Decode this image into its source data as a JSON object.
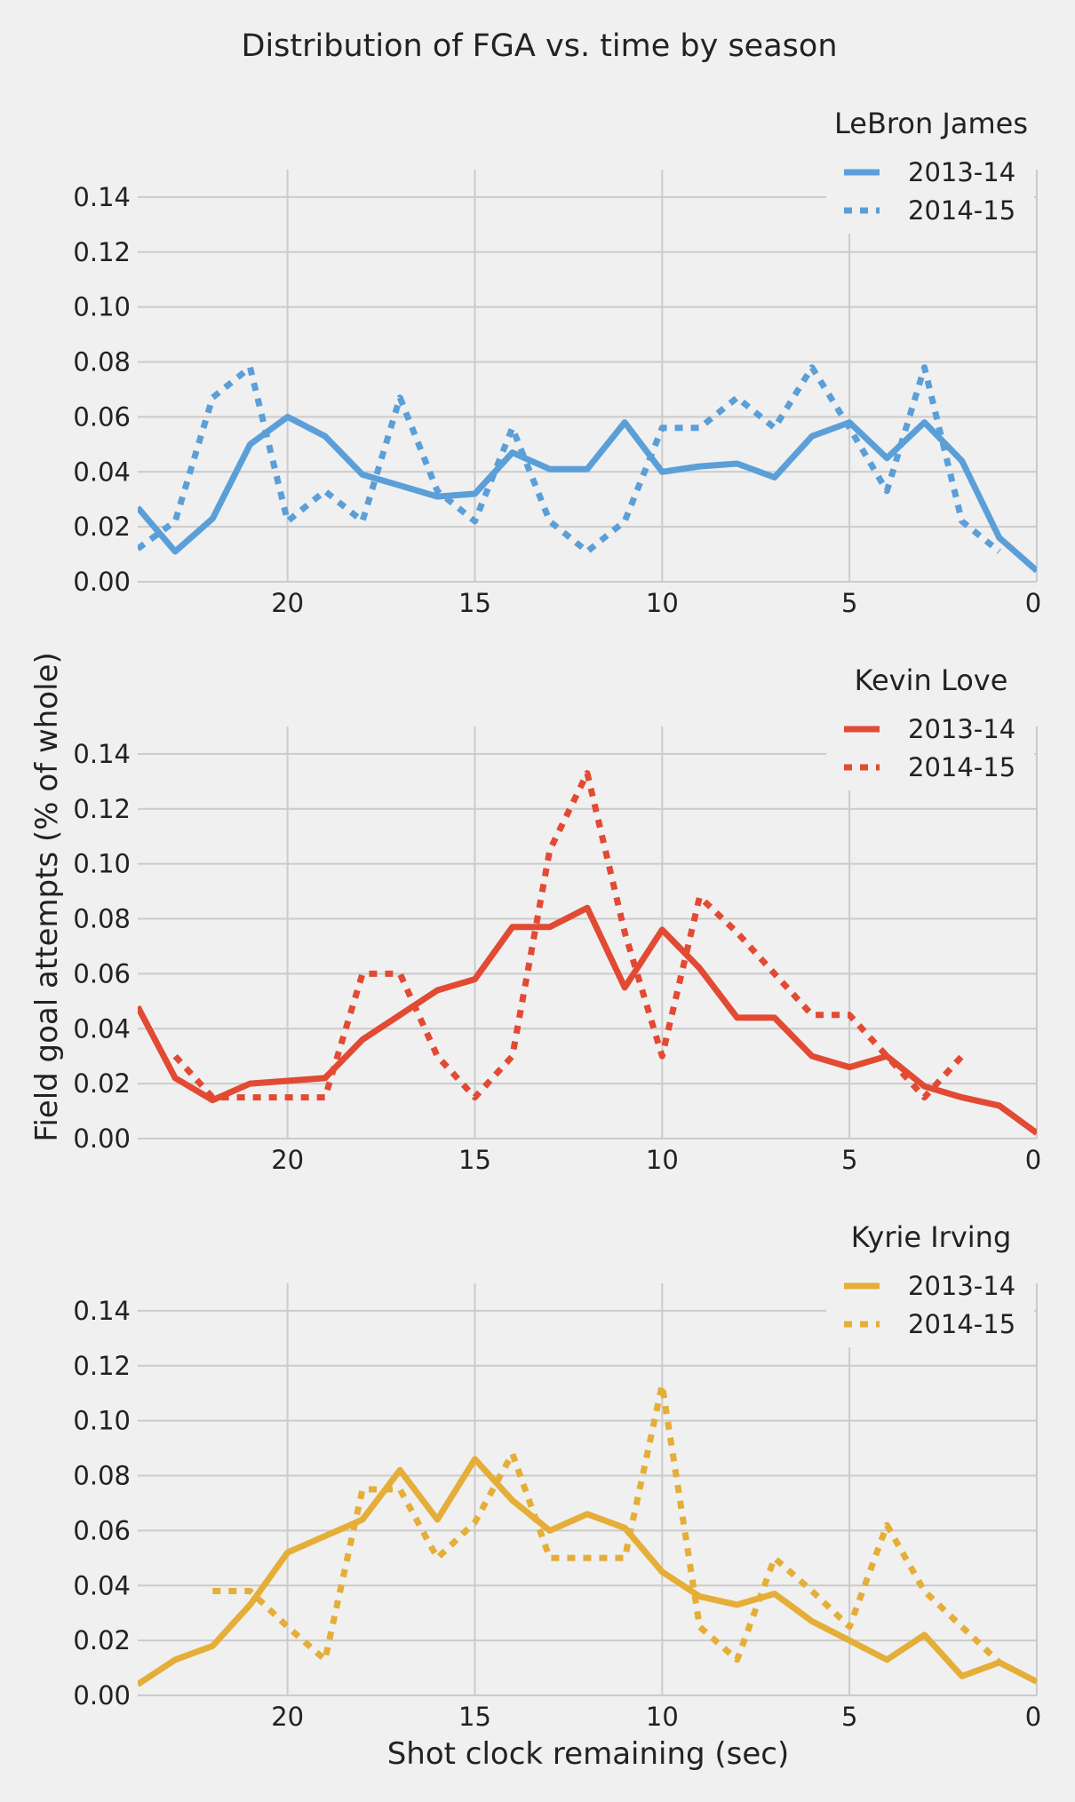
{
  "figure": {
    "title": "Distribution of FGA vs. time by season",
    "xlabel": "Shot clock remaining (sec)",
    "ylabel": "Field goal attempts (% of whole)"
  },
  "chart_data": [
    {
      "type": "line",
      "title": "LeBron James",
      "xlabel": "",
      "ylabel": "",
      "xlim": [
        24,
        0
      ],
      "ylim": [
        0,
        0.15
      ],
      "xticks": [
        "20",
        "15",
        "10",
        "5",
        "0"
      ],
      "yticks": [
        "0.00",
        "0.02",
        "0.04",
        "0.06",
        "0.08",
        "0.10",
        "0.12",
        "0.14"
      ],
      "grid": true,
      "legend": "top-right",
      "color": "#5b9fd8",
      "series": [
        {
          "name": "2013-14",
          "style": "solid",
          "x": [
            24,
            23,
            22,
            21,
            20,
            19,
            18,
            17,
            16,
            15,
            14,
            13,
            12,
            11,
            10,
            9,
            8,
            7,
            6,
            5,
            4,
            3,
            2,
            1,
            0
          ],
          "values": [
            0.027,
            0.011,
            0.023,
            0.05,
            0.06,
            0.053,
            0.039,
            0.035,
            0.031,
            0.032,
            0.047,
            0.041,
            0.041,
            0.058,
            0.04,
            0.042,
            0.043,
            0.038,
            0.053,
            0.058,
            0.045,
            0.058,
            0.044,
            0.016,
            0.004
          ]
        },
        {
          "name": "2014-15",
          "style": "dotted",
          "x": [
            24,
            23,
            22,
            21,
            20,
            19,
            18,
            17,
            16,
            15,
            14,
            13,
            12,
            11,
            10,
            9,
            8,
            7,
            6,
            5,
            4,
            3,
            2,
            1
          ],
          "values": [
            0.012,
            0.022,
            0.067,
            0.078,
            0.022,
            0.033,
            0.022,
            0.067,
            0.033,
            0.022,
            0.056,
            0.022,
            0.011,
            0.022,
            0.056,
            0.056,
            0.067,
            0.056,
            0.078,
            0.056,
            0.033,
            0.078,
            0.022,
            0.011
          ]
        }
      ]
    },
    {
      "type": "line",
      "title": "Kevin Love",
      "xlabel": "",
      "ylabel": "",
      "xlim": [
        24,
        0
      ],
      "ylim": [
        0,
        0.15
      ],
      "xticks": [
        "20",
        "15",
        "10",
        "5",
        "0"
      ],
      "yticks": [
        "0.00",
        "0.02",
        "0.04",
        "0.06",
        "0.08",
        "0.10",
        "0.12",
        "0.14"
      ],
      "grid": true,
      "legend": "top-right",
      "color": "#e24a33",
      "series": [
        {
          "name": "2013-14",
          "style": "solid",
          "x": [
            24,
            23,
            22,
            21,
            20,
            19,
            18,
            17,
            16,
            15,
            14,
            13,
            12,
            11,
            10,
            9,
            8,
            7,
            6,
            5,
            4,
            3,
            2,
            1,
            0
          ],
          "values": [
            0.048,
            0.022,
            0.014,
            0.02,
            0.021,
            0.022,
            0.036,
            0.045,
            0.054,
            0.058,
            0.077,
            0.077,
            0.084,
            0.055,
            0.076,
            0.062,
            0.044,
            0.044,
            0.03,
            0.026,
            0.03,
            0.019,
            0.015,
            0.012,
            0.002
          ]
        },
        {
          "name": "2014-15",
          "style": "dotted",
          "x": [
            23,
            22,
            21,
            20,
            19,
            18,
            17,
            16,
            15,
            14,
            13,
            12,
            11,
            10,
            9,
            8,
            7,
            6,
            5,
            4,
            3,
            2
          ],
          "values": [
            0.03,
            0.015,
            0.015,
            0.015,
            0.015,
            0.06,
            0.06,
            0.03,
            0.015,
            0.03,
            0.105,
            0.133,
            0.075,
            0.03,
            0.088,
            0.075,
            0.06,
            0.045,
            0.045,
            0.03,
            0.015,
            0.03
          ]
        }
      ]
    },
    {
      "type": "line",
      "title": "Kyrie Irving",
      "xlabel": "",
      "ylabel": "",
      "xlim": [
        24,
        0
      ],
      "ylim": [
        0,
        0.15
      ],
      "xticks": [
        "20",
        "15",
        "10",
        "5",
        "0"
      ],
      "yticks": [
        "0.00",
        "0.02",
        "0.04",
        "0.06",
        "0.08",
        "0.10",
        "0.12",
        "0.14"
      ],
      "grid": true,
      "legend": "top-right",
      "color": "#e5ae38",
      "series": [
        {
          "name": "2013-14",
          "style": "solid",
          "x": [
            24,
            23,
            22,
            21,
            20,
            19,
            18,
            17,
            16,
            15,
            14,
            13,
            12,
            11,
            10,
            9,
            8,
            7,
            6,
            5,
            4,
            3,
            2,
            1,
            0
          ],
          "values": [
            0.004,
            0.013,
            0.018,
            0.033,
            0.052,
            0.058,
            0.064,
            0.082,
            0.064,
            0.086,
            0.071,
            0.06,
            0.066,
            0.061,
            0.045,
            0.036,
            0.033,
            0.037,
            0.027,
            0.02,
            0.013,
            0.022,
            0.007,
            0.012,
            0.005
          ]
        },
        {
          "name": "2014-15",
          "style": "dotted",
          "x": [
            22,
            21,
            20,
            19,
            18,
            17,
            16,
            15,
            14,
            13,
            12,
            11,
            10,
            9,
            8,
            7,
            6,
            5,
            4,
            3,
            2,
            1
          ],
          "values": [
            0.038,
            0.038,
            0.025,
            0.013,
            0.075,
            0.075,
            0.05,
            0.063,
            0.088,
            0.05,
            0.05,
            0.05,
            0.113,
            0.025,
            0.013,
            0.05,
            0.038,
            0.025,
            0.062,
            0.038,
            0.025,
            0.012
          ]
        }
      ]
    }
  ]
}
